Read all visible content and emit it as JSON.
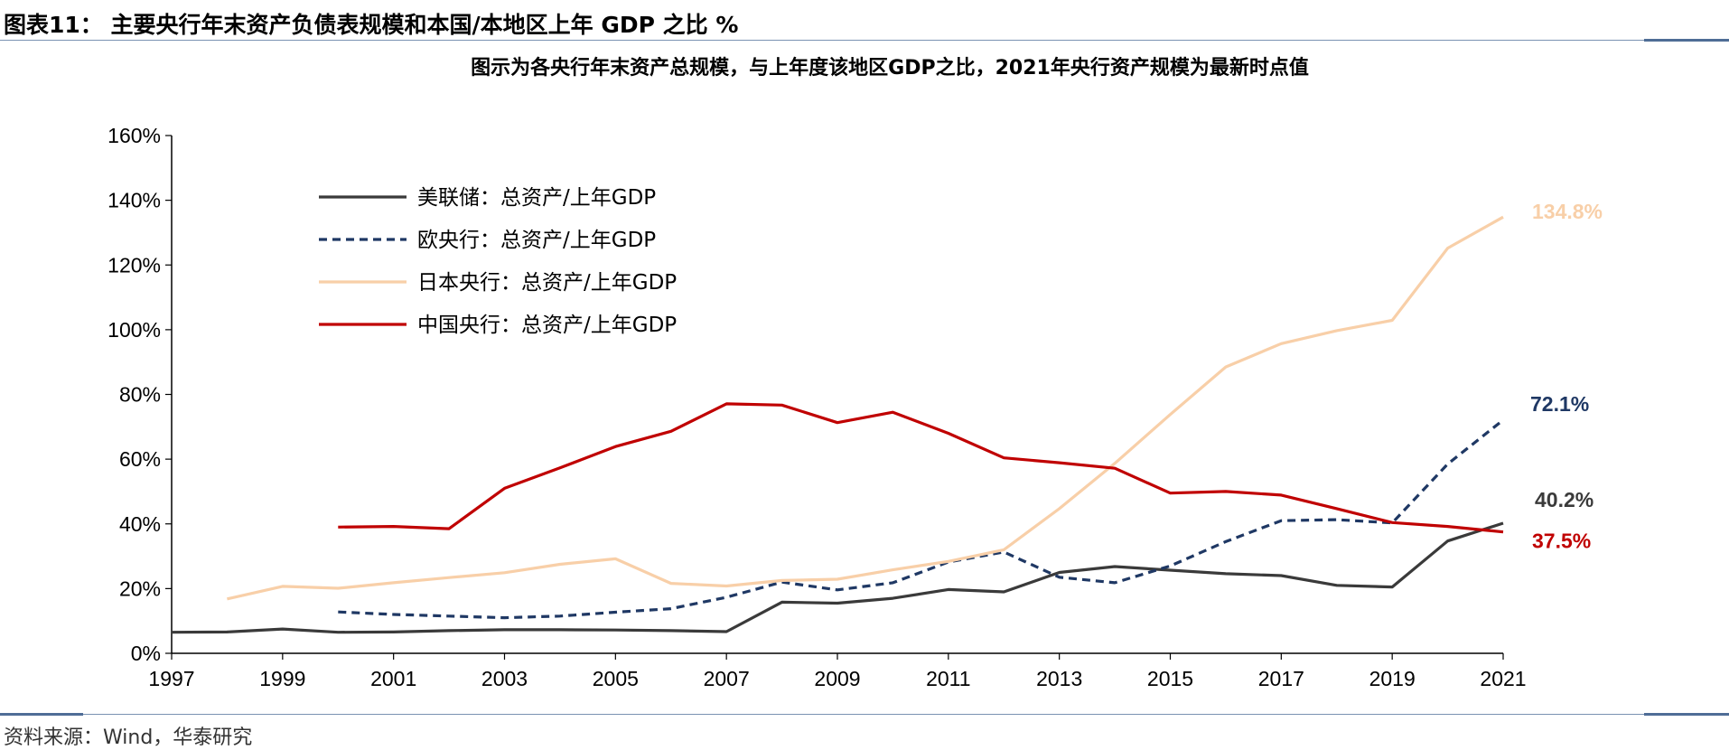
{
  "figure": {
    "title": "图表11：  主要央行年末资产负债表规模和本国/本地区上年 GDP 之比 %",
    "source": "资料来源：Wind，华泰研究"
  },
  "chart_data": {
    "type": "line",
    "title": "图示为各央行年末资产总规模，与上年度该地区GDP之比，2021年央行资产规模为最新时点值",
    "ylim": [
      0,
      160
    ],
    "yticks": [
      0,
      20,
      40,
      60,
      80,
      100,
      120,
      140,
      160
    ],
    "ytick_labels": [
      "0%",
      "20%",
      "40%",
      "60%",
      "80%",
      "100%",
      "120%",
      "140%",
      "160%"
    ],
    "xlim": [
      1997,
      2021
    ],
    "xticks": [
      1997,
      1999,
      2001,
      2003,
      2005,
      2007,
      2009,
      2011,
      2013,
      2015,
      2017,
      2019,
      2021
    ],
    "legend_position": "top-left",
    "grid": false,
    "series": [
      {
        "name": "美联储：总资产/上年GDP",
        "color": "#3a3a3a",
        "style": "solid",
        "x": [
          1997,
          1998,
          1999,
          2000,
          2001,
          2002,
          2003,
          2004,
          2005,
          2006,
          2007,
          2008,
          2009,
          2010,
          2011,
          2012,
          2013,
          2014,
          2015,
          2016,
          2017,
          2018,
          2019,
          2020,
          2021
        ],
        "values": [
          6.5,
          6.6,
          7.5,
          6.5,
          6.6,
          7.0,
          7.3,
          7.3,
          7.2,
          7.0,
          6.7,
          15.8,
          15.5,
          17.0,
          19.7,
          19.0,
          25.0,
          26.8,
          25.7,
          24.6,
          24.0,
          21.0,
          20.5,
          34.7,
          40.2
        ],
        "end_label": "40.2%"
      },
      {
        "name": "欧央行：总资产/上年GDP",
        "color": "#1f3864",
        "style": "dashed",
        "x": [
          2000,
          2001,
          2002,
          2003,
          2004,
          2005,
          2006,
          2007,
          2008,
          2009,
          2010,
          2011,
          2012,
          2013,
          2014,
          2015,
          2016,
          2017,
          2018,
          2019,
          2020,
          2021
        ],
        "values": [
          12.8,
          12.0,
          11.5,
          11.0,
          11.5,
          12.7,
          13.8,
          17.3,
          22.0,
          19.6,
          21.8,
          28.2,
          31.3,
          23.5,
          21.8,
          27.0,
          34.5,
          41.0,
          41.3,
          40.3,
          58.5,
          72.1
        ],
        "end_label": "72.1%"
      },
      {
        "name": "日本央行：总资产/上年GDP",
        "color": "#f8cfa8",
        "style": "solid",
        "x": [
          1998,
          1999,
          2000,
          2001,
          2002,
          2003,
          2004,
          2005,
          2006,
          2007,
          2008,
          2009,
          2010,
          2011,
          2012,
          2013,
          2014,
          2015,
          2016,
          2017,
          2018,
          2019,
          2020,
          2021
        ],
        "values": [
          16.8,
          20.7,
          20.1,
          21.8,
          23.4,
          24.9,
          27.5,
          29.2,
          21.6,
          20.8,
          22.5,
          22.9,
          25.8,
          28.4,
          32.0,
          44.7,
          58.7,
          73.8,
          88.5,
          95.7,
          99.7,
          102.9,
          125.2,
          134.8
        ],
        "end_label": "134.8%"
      },
      {
        "name": "中国央行：总资产/上年GDP",
        "color": "#c00000",
        "style": "solid",
        "x": [
          2000,
          2001,
          2002,
          2003,
          2004,
          2005,
          2006,
          2007,
          2008,
          2009,
          2010,
          2011,
          2012,
          2013,
          2014,
          2015,
          2016,
          2017,
          2018,
          2019,
          2020,
          2021
        ],
        "values": [
          39.0,
          39.2,
          38.5,
          51.0,
          57.3,
          63.9,
          68.6,
          77.1,
          76.7,
          71.3,
          74.5,
          68.0,
          60.4,
          58.9,
          57.2,
          49.5,
          50.0,
          48.9,
          44.7,
          40.4,
          39.2,
          37.5
        ],
        "end_label": "37.5%"
      }
    ]
  }
}
